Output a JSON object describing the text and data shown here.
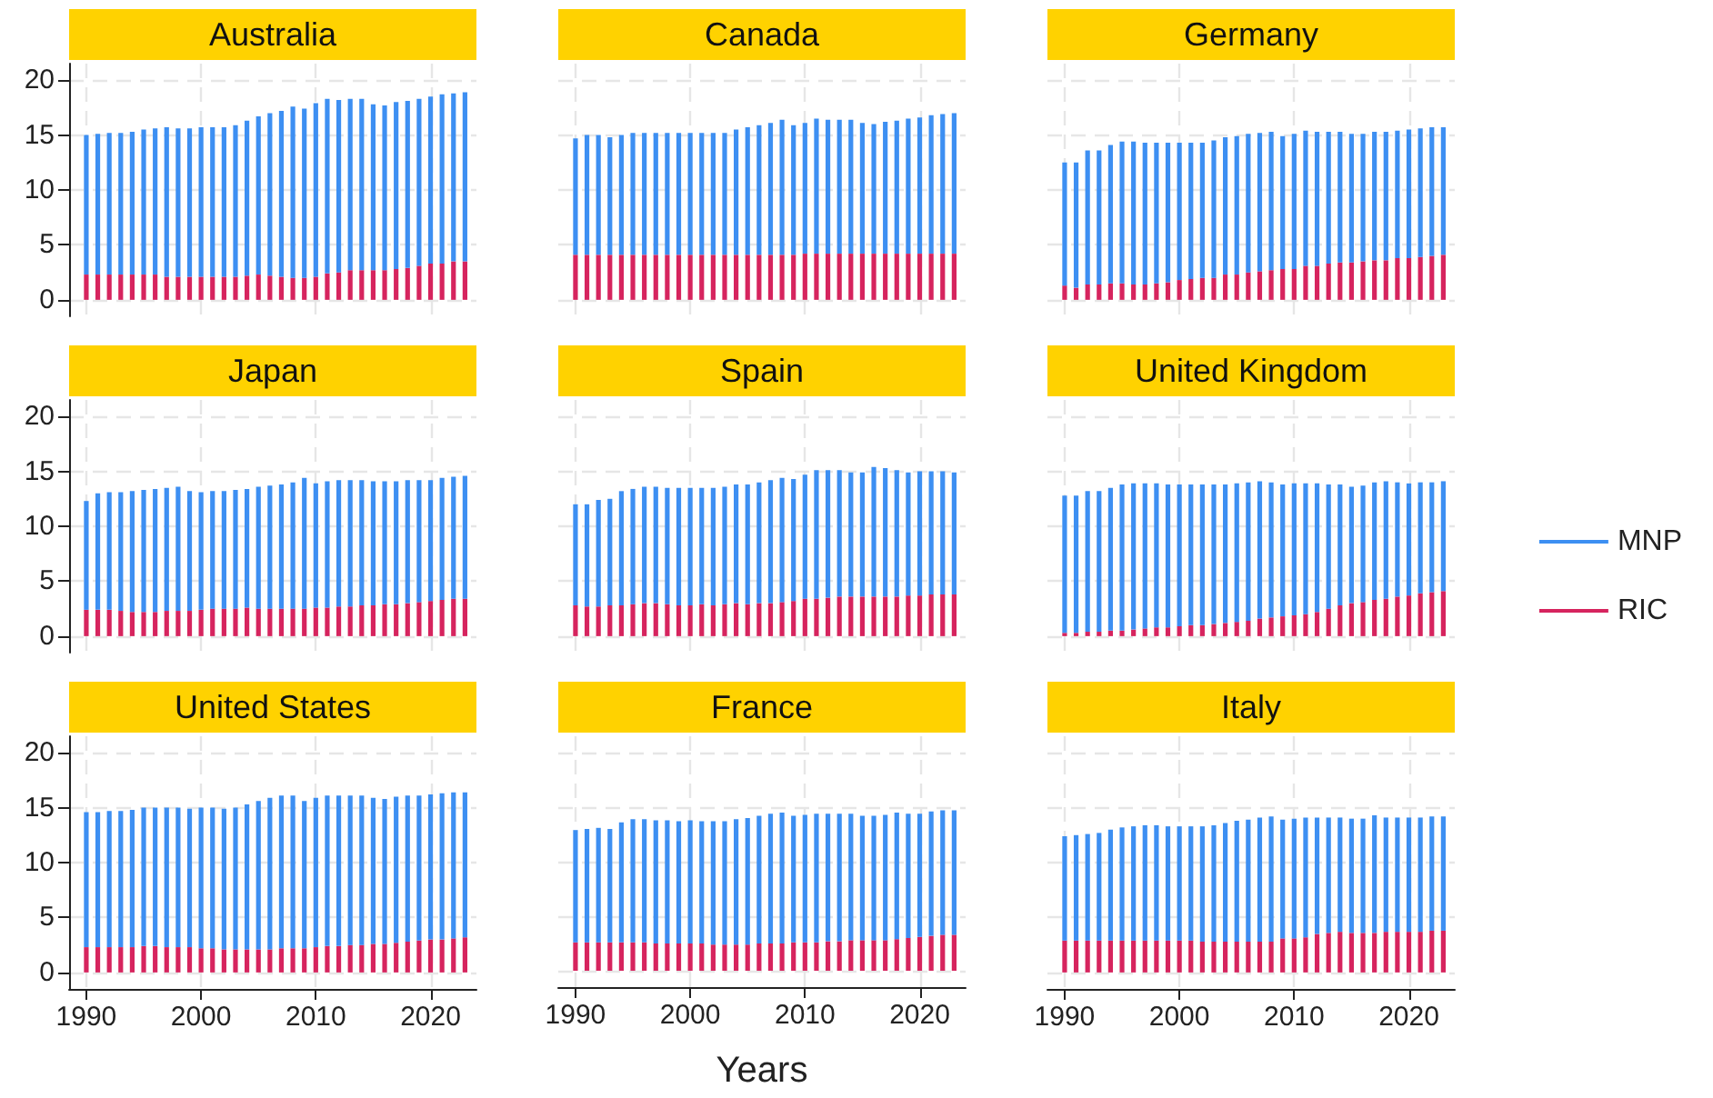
{
  "chart_data": [
    {
      "type": "bar",
      "title": "Australia",
      "stacked": true,
      "grid": true,
      "tick_labels": "y",
      "x": [
        1990,
        1991,
        1992,
        1993,
        1994,
        1995,
        1996,
        1997,
        1998,
        1999,
        2000,
        2001,
        2002,
        2003,
        2004,
        2005,
        2006,
        2007,
        2008,
        2009,
        2010,
        2011,
        2012,
        2013,
        2014,
        2015,
        2016,
        2017,
        2018,
        2019,
        2020,
        2021,
        2022,
        2023
      ],
      "xlim": [
        1988.5,
        2024
      ],
      "xticks": [
        1990,
        2000,
        2010,
        2020
      ],
      "ylim": [
        -1.5,
        21.5
      ],
      "yticks": [
        0,
        5,
        10,
        15,
        20
      ],
      "series": [
        {
          "color": "#d6245e",
          "values": [
            2.3,
            2.3,
            2.3,
            2.3,
            2.3,
            2.3,
            2.3,
            2.1,
            2.1,
            2.1,
            2.1,
            2.1,
            2.1,
            2.1,
            2.2,
            2.3,
            2.2,
            2.1,
            2.0,
            2.0,
            2.1,
            2.4,
            2.5,
            2.7,
            2.7,
            2.7,
            2.7,
            2.8,
            2.9,
            3.1,
            3.3,
            3.3,
            3.5,
            3.5
          ]
        },
        {
          "color": "#3d8ff2",
          "values": [
            12.7,
            12.8,
            12.9,
            12.9,
            13.0,
            13.2,
            13.3,
            13.6,
            13.5,
            13.5,
            13.6,
            13.6,
            13.6,
            13.8,
            14.1,
            14.4,
            14.8,
            15.1,
            15.6,
            15.4,
            15.8,
            15.9,
            15.7,
            15.6,
            15.6,
            15.1,
            15.0,
            15.2,
            15.2,
            15.2,
            15.2,
            15.4,
            15.3,
            15.4
          ]
        }
      ]
    },
    {
      "type": "bar",
      "title": "Canada",
      "stacked": true,
      "grid": true,
      "tick_labels": false,
      "x": [
        1990,
        1991,
        1992,
        1993,
        1994,
        1995,
        1996,
        1997,
        1998,
        1999,
        2000,
        2001,
        2002,
        2003,
        2004,
        2005,
        2006,
        2007,
        2008,
        2009,
        2010,
        2011,
        2012,
        2013,
        2014,
        2015,
        2016,
        2017,
        2018,
        2019,
        2020,
        2021,
        2022,
        2023
      ],
      "xlim": [
        1988.5,
        2024
      ],
      "xticks": [
        1990,
        2000,
        2010,
        2020
      ],
      "ylim": [
        -1.5,
        21.5
      ],
      "yticks": [
        0,
        5,
        10,
        15,
        20
      ],
      "series": [
        {
          "color": "#d6245e",
          "values": [
            4.1,
            4.1,
            4.1,
            4.1,
            4.1,
            4.1,
            4.1,
            4.1,
            4.1,
            4.1,
            4.1,
            4.1,
            4.1,
            4.1,
            4.1,
            4.1,
            4.1,
            4.1,
            4.1,
            4.1,
            4.2,
            4.2,
            4.2,
            4.2,
            4.2,
            4.2,
            4.2,
            4.2,
            4.2,
            4.2,
            4.2,
            4.2,
            4.2,
            4.2
          ]
        },
        {
          "color": "#3d8ff2",
          "values": [
            10.6,
            10.9,
            10.9,
            10.7,
            10.9,
            11.1,
            11.1,
            11.1,
            11.1,
            11.1,
            11.1,
            11.1,
            11.1,
            11.1,
            11.4,
            11.6,
            11.8,
            12.0,
            12.3,
            11.8,
            11.9,
            12.3,
            12.2,
            12.2,
            12.2,
            11.9,
            11.8,
            12.0,
            12.1,
            12.3,
            12.4,
            12.6,
            12.7,
            12.8
          ]
        }
      ]
    },
    {
      "type": "bar",
      "title": "Germany",
      "stacked": true,
      "grid": true,
      "tick_labels": false,
      "x": [
        1990,
        1991,
        1992,
        1993,
        1994,
        1995,
        1996,
        1997,
        1998,
        1999,
        2000,
        2001,
        2002,
        2003,
        2004,
        2005,
        2006,
        2007,
        2008,
        2009,
        2010,
        2011,
        2012,
        2013,
        2014,
        2015,
        2016,
        2017,
        2018,
        2019,
        2020,
        2021,
        2022,
        2023
      ],
      "xlim": [
        1988.5,
        2024
      ],
      "xticks": [
        1990,
        2000,
        2010,
        2020
      ],
      "ylim": [
        -1.5,
        21.5
      ],
      "yticks": [
        0,
        5,
        10,
        15,
        20
      ],
      "series": [
        {
          "color": "#d6245e",
          "values": [
            1.3,
            1.1,
            1.4,
            1.4,
            1.5,
            1.5,
            1.4,
            1.4,
            1.5,
            1.6,
            1.8,
            1.9,
            2.0,
            2.0,
            2.3,
            2.3,
            2.5,
            2.6,
            2.7,
            2.8,
            2.8,
            3.1,
            3.1,
            3.3,
            3.4,
            3.4,
            3.5,
            3.6,
            3.6,
            3.8,
            3.8,
            3.9,
            4.0,
            4.1
          ]
        },
        {
          "color": "#3d8ff2",
          "values": [
            11.2,
            11.4,
            12.2,
            12.2,
            12.6,
            12.9,
            13.0,
            12.9,
            12.8,
            12.7,
            12.5,
            12.4,
            12.3,
            12.5,
            12.5,
            12.6,
            12.6,
            12.6,
            12.6,
            12.1,
            12.3,
            12.3,
            12.2,
            12.0,
            11.9,
            11.7,
            11.6,
            11.7,
            11.7,
            11.6,
            11.7,
            11.7,
            11.7,
            11.6
          ]
        }
      ]
    },
    {
      "type": "bar",
      "title": "Japan",
      "stacked": true,
      "grid": true,
      "tick_labels": "y",
      "x": [
        1990,
        1991,
        1992,
        1993,
        1994,
        1995,
        1996,
        1997,
        1998,
        1999,
        2000,
        2001,
        2002,
        2003,
        2004,
        2005,
        2006,
        2007,
        2008,
        2009,
        2010,
        2011,
        2012,
        2013,
        2014,
        2015,
        2016,
        2017,
        2018,
        2019,
        2020,
        2021,
        2022,
        2023
      ],
      "xlim": [
        1988.5,
        2024
      ],
      "xticks": [
        1990,
        2000,
        2010,
        2020
      ],
      "ylim": [
        -1.5,
        21.5
      ],
      "yticks": [
        0,
        5,
        10,
        15,
        20
      ],
      "series": [
        {
          "color": "#d6245e",
          "values": [
            2.4,
            2.4,
            2.4,
            2.3,
            2.2,
            2.2,
            2.2,
            2.3,
            2.3,
            2.3,
            2.4,
            2.5,
            2.5,
            2.5,
            2.6,
            2.5,
            2.5,
            2.5,
            2.5,
            2.5,
            2.6,
            2.6,
            2.7,
            2.7,
            2.8,
            2.8,
            2.9,
            2.9,
            3.0,
            3.1,
            3.2,
            3.3,
            3.4,
            3.4
          ]
        },
        {
          "color": "#3d8ff2",
          "values": [
            9.9,
            10.6,
            10.7,
            10.8,
            11.0,
            11.1,
            11.2,
            11.2,
            11.3,
            10.9,
            10.7,
            10.7,
            10.7,
            10.8,
            10.8,
            11.1,
            11.2,
            11.3,
            11.5,
            11.9,
            11.3,
            11.5,
            11.5,
            11.5,
            11.4,
            11.3,
            11.2,
            11.2,
            11.2,
            11.1,
            11.0,
            11.1,
            11.1,
            11.2
          ]
        }
      ]
    },
    {
      "type": "bar",
      "title": "Spain",
      "stacked": true,
      "grid": true,
      "tick_labels": false,
      "x": [
        1990,
        1991,
        1992,
        1993,
        1994,
        1995,
        1996,
        1997,
        1998,
        1999,
        2000,
        2001,
        2002,
        2003,
        2004,
        2005,
        2006,
        2007,
        2008,
        2009,
        2010,
        2011,
        2012,
        2013,
        2014,
        2015,
        2016,
        2017,
        2018,
        2019,
        2020,
        2021,
        2022,
        2023
      ],
      "xlim": [
        1988.5,
        2024
      ],
      "xticks": [
        1990,
        2000,
        2010,
        2020
      ],
      "ylim": [
        -1.5,
        21.5
      ],
      "yticks": [
        0,
        5,
        10,
        15,
        20
      ],
      "series": [
        {
          "color": "#d6245e",
          "values": [
            2.8,
            2.7,
            2.7,
            2.8,
            2.8,
            2.9,
            3.0,
            3.0,
            2.9,
            2.8,
            2.8,
            2.9,
            2.8,
            2.9,
            3.0,
            2.9,
            3.0,
            3.0,
            3.1,
            3.2,
            3.4,
            3.4,
            3.5,
            3.6,
            3.6,
            3.6,
            3.6,
            3.6,
            3.6,
            3.7,
            3.7,
            3.8,
            3.8,
            3.8
          ]
        },
        {
          "color": "#3d8ff2",
          "values": [
            9.2,
            9.3,
            9.7,
            9.7,
            10.4,
            10.5,
            10.6,
            10.6,
            10.6,
            10.7,
            10.7,
            10.6,
            10.7,
            10.7,
            10.8,
            10.9,
            11.0,
            11.2,
            11.3,
            11.1,
            11.3,
            11.7,
            11.6,
            11.5,
            11.3,
            11.3,
            11.8,
            11.7,
            11.5,
            11.2,
            11.3,
            11.2,
            11.2,
            11.1
          ]
        }
      ]
    },
    {
      "type": "bar",
      "title": "United Kingdom",
      "stacked": true,
      "grid": true,
      "tick_labels": false,
      "legend": "right",
      "x": [
        1990,
        1991,
        1992,
        1993,
        1994,
        1995,
        1996,
        1997,
        1998,
        1999,
        2000,
        2001,
        2002,
        2003,
        2004,
        2005,
        2006,
        2007,
        2008,
        2009,
        2010,
        2011,
        2012,
        2013,
        2014,
        2015,
        2016,
        2017,
        2018,
        2019,
        2020,
        2021,
        2022,
        2023
      ],
      "xlim": [
        1988.5,
        2024
      ],
      "xticks": [
        1990,
        2000,
        2010,
        2020
      ],
      "ylim": [
        -1.5,
        21.5
      ],
      "yticks": [
        0,
        5,
        10,
        15,
        20
      ],
      "series": [
        {
          "name": "RIC",
          "color": "#d6245e",
          "values": [
            0.3,
            0.3,
            0.4,
            0.4,
            0.5,
            0.5,
            0.6,
            0.7,
            0.8,
            0.8,
            0.9,
            1.0,
            1.0,
            1.1,
            1.2,
            1.3,
            1.4,
            1.6,
            1.7,
            1.8,
            1.9,
            2.0,
            2.2,
            2.5,
            2.8,
            3.0,
            3.1,
            3.3,
            3.4,
            3.6,
            3.7,
            3.9,
            4.0,
            4.1
          ]
        },
        {
          "name": "MNP",
          "color": "#3d8ff2",
          "values": [
            12.5,
            12.5,
            12.8,
            12.8,
            13.0,
            13.3,
            13.3,
            13.2,
            13.1,
            13.0,
            12.9,
            12.8,
            12.8,
            12.7,
            12.6,
            12.6,
            12.6,
            12.5,
            12.3,
            12.0,
            12.0,
            11.9,
            11.7,
            11.3,
            11.0,
            10.6,
            10.6,
            10.7,
            10.7,
            10.4,
            10.2,
            10.1,
            10.0,
            10.0
          ]
        }
      ]
    },
    {
      "type": "bar",
      "title": "United States",
      "stacked": true,
      "grid": true,
      "x": [
        1990,
        1991,
        1992,
        1993,
        1994,
        1995,
        1996,
        1997,
        1998,
        1999,
        2000,
        2001,
        2002,
        2003,
        2004,
        2005,
        2006,
        2007,
        2008,
        2009,
        2010,
        2011,
        2012,
        2013,
        2014,
        2015,
        2016,
        2017,
        2018,
        2019,
        2020,
        2021,
        2022,
        2023
      ],
      "xlim": [
        1988.5,
        2024
      ],
      "xticks": [
        1990,
        2000,
        2010,
        2020
      ],
      "ylim": [
        -1.5,
        21.5
      ],
      "yticks": [
        0,
        5,
        10,
        15,
        20
      ],
      "series": [
        {
          "color": "#d6245e",
          "values": [
            2.3,
            2.3,
            2.3,
            2.3,
            2.3,
            2.4,
            2.4,
            2.3,
            2.3,
            2.3,
            2.2,
            2.2,
            2.1,
            2.1,
            2.1,
            2.1,
            2.1,
            2.2,
            2.2,
            2.2,
            2.3,
            2.4,
            2.4,
            2.5,
            2.5,
            2.6,
            2.6,
            2.7,
            2.8,
            2.9,
            3.0,
            3.0,
            3.1,
            3.2
          ]
        },
        {
          "color": "#3d8ff2",
          "values": [
            12.3,
            12.3,
            12.4,
            12.4,
            12.5,
            12.6,
            12.6,
            12.7,
            12.7,
            12.6,
            12.8,
            12.8,
            12.8,
            12.9,
            13.2,
            13.5,
            13.8,
            13.9,
            13.9,
            13.4,
            13.6,
            13.7,
            13.7,
            13.6,
            13.6,
            13.3,
            13.2,
            13.3,
            13.3,
            13.2,
            13.2,
            13.3,
            13.3,
            13.2
          ]
        }
      ]
    },
    {
      "type": "bar",
      "title": "France",
      "xlabel": "Years",
      "stacked": true,
      "grid": true,
      "tick_labels": "x",
      "x": [
        1990,
        1991,
        1992,
        1993,
        1994,
        1995,
        1996,
        1997,
        1998,
        1999,
        2000,
        2001,
        2002,
        2003,
        2004,
        2005,
        2006,
        2007,
        2008,
        2009,
        2010,
        2011,
        2012,
        2013,
        2014,
        2015,
        2016,
        2017,
        2018,
        2019,
        2020,
        2021,
        2022,
        2023
      ],
      "xlim": [
        1988.5,
        2024
      ],
      "xticks": [
        1990,
        2000,
        2010,
        2020
      ],
      "ylim": [
        -1.5,
        21.5
      ],
      "yticks": [
        0,
        5,
        10,
        15,
        20
      ],
      "series": [
        {
          "color": "#d6245e",
          "values": [
            2.6,
            2.6,
            2.6,
            2.6,
            2.6,
            2.6,
            2.6,
            2.5,
            2.5,
            2.5,
            2.5,
            2.5,
            2.4,
            2.4,
            2.4,
            2.4,
            2.5,
            2.5,
            2.5,
            2.6,
            2.6,
            2.6,
            2.7,
            2.7,
            2.8,
            2.8,
            2.8,
            2.8,
            2.9,
            3.0,
            3.1,
            3.2,
            3.3,
            3.3
          ]
        },
        {
          "color": "#3d8ff2",
          "values": [
            10.3,
            10.4,
            10.5,
            10.4,
            11.0,
            11.3,
            11.3,
            11.3,
            11.3,
            11.2,
            11.3,
            11.2,
            11.3,
            11.3,
            11.5,
            11.6,
            11.7,
            11.9,
            12.0,
            11.6,
            11.7,
            11.8,
            11.7,
            11.7,
            11.6,
            11.4,
            11.4,
            11.5,
            11.6,
            11.4,
            11.3,
            11.4,
            11.4,
            11.4
          ]
        }
      ]
    },
    {
      "type": "bar",
      "title": "Italy",
      "stacked": true,
      "grid": true,
      "tick_labels": "x",
      "x": [
        1990,
        1991,
        1992,
        1993,
        1994,
        1995,
        1996,
        1997,
        1998,
        1999,
        2000,
        2001,
        2002,
        2003,
        2004,
        2005,
        2006,
        2007,
        2008,
        2009,
        2010,
        2011,
        2012,
        2013,
        2014,
        2015,
        2016,
        2017,
        2018,
        2019,
        2020,
        2021,
        2022,
        2023
      ],
      "xlim": [
        1988.5,
        2024
      ],
      "xticks": [
        1990,
        2000,
        2010,
        2020
      ],
      "ylim": [
        -1.5,
        21.5
      ],
      "yticks": [
        0,
        5,
        10,
        15,
        20
      ],
      "series": [
        {
          "color": "#d6245e",
          "values": [
            2.9,
            2.9,
            2.9,
            2.9,
            2.9,
            2.9,
            2.9,
            2.9,
            2.9,
            2.9,
            2.9,
            2.9,
            2.8,
            2.8,
            2.8,
            2.8,
            2.8,
            2.8,
            2.8,
            3.1,
            3.1,
            3.2,
            3.5,
            3.6,
            3.7,
            3.6,
            3.6,
            3.6,
            3.7,
            3.7,
            3.7,
            3.7,
            3.8,
            3.8
          ]
        },
        {
          "color": "#3d8ff2",
          "values": [
            9.5,
            9.6,
            9.7,
            9.8,
            10.1,
            10.3,
            10.4,
            10.5,
            10.5,
            10.4,
            10.4,
            10.4,
            10.5,
            10.6,
            10.8,
            11.0,
            11.1,
            11.3,
            11.4,
            10.8,
            10.9,
            10.9,
            10.6,
            10.5,
            10.4,
            10.4,
            10.4,
            10.7,
            10.4,
            10.4,
            10.4,
            10.4,
            10.4,
            10.4
          ]
        }
      ]
    }
  ]
}
